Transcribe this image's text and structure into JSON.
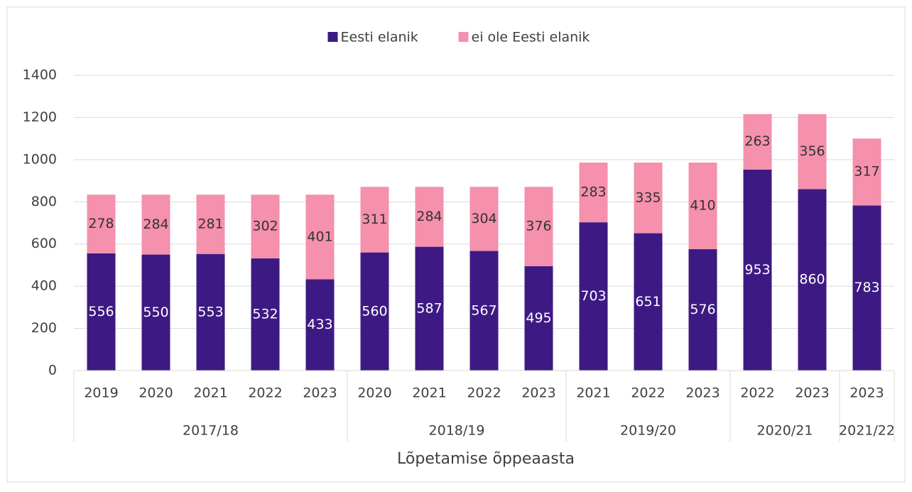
{
  "chart_data": {
    "type": "stacked_bar",
    "x_axis_label": "Lõpetamise õppeaasta",
    "groups": [
      {
        "label": "2017/18",
        "categories": [
          "2019",
          "2020",
          "2021",
          "2022",
          "2023"
        ]
      },
      {
        "label": "2018/19",
        "categories": [
          "2020",
          "2021",
          "2022",
          "2023"
        ]
      },
      {
        "label": "2019/20",
        "categories": [
          "2021",
          "2022",
          "2023"
        ]
      },
      {
        "label": "2020/21",
        "categories": [
          "2022",
          "2023"
        ]
      },
      {
        "label": "2021/22",
        "categories": [
          "2023"
        ]
      }
    ],
    "series": [
      {
        "name": "Eesti elanik",
        "color": "#3d1a83",
        "label_color": "#ffffff",
        "values": [
          556,
          550,
          553,
          532,
          433,
          560,
          587,
          567,
          495,
          703,
          651,
          576,
          953,
          860,
          783
        ]
      },
      {
        "name": "ei ole Eesti elanik",
        "color": "#f590ad",
        "label_color": "#333333",
        "values": [
          278,
          284,
          281,
          302,
          401,
          311,
          284,
          304,
          376,
          283,
          335,
          410,
          263,
          356,
          317
        ]
      }
    ],
    "ylim": [
      0,
      1400
    ],
    "yticks": [
      0,
      200,
      400,
      600,
      800,
      1000,
      1200,
      1400
    ],
    "grid": true,
    "legend_position": "top"
  }
}
